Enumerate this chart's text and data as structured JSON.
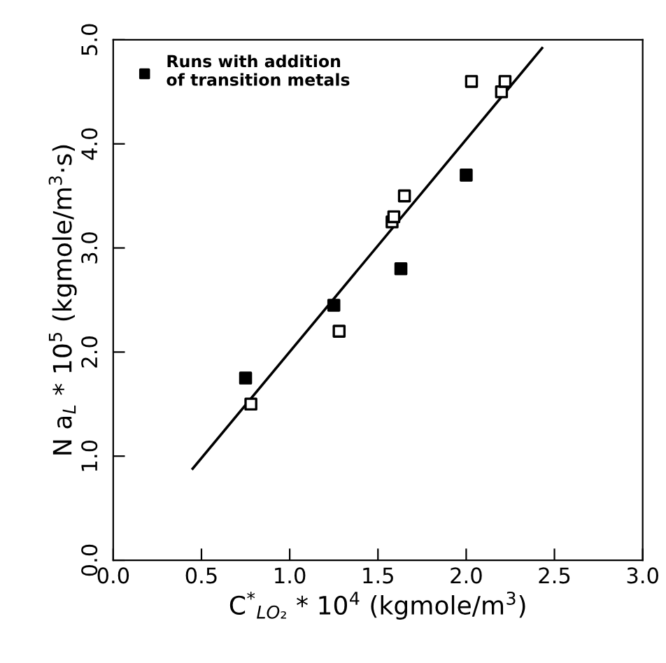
{
  "chart_data": {
    "type": "scatter",
    "xlabel": "C$^{*}$$_{LO₂}$ * 10$^{4}$ (kgmole/m$^{3}$)",
    "ylabel": "N a$_{L}$ * 10$^{5}$ (kgmole/m$^{3}$·s)",
    "xlim": [
      0,
      3.0
    ],
    "xticks": [
      {
        "value": 0,
        "label": "0.0"
      },
      0.5,
      {
        "value": 1,
        "label": "1.0"
      },
      1.5,
      {
        "value": 2,
        "label": "2.0"
      },
      2.5,
      {
        "value": 3,
        "label": "3.0"
      }
    ],
    "ylim": [
      0,
      5.0
    ],
    "yticks": [
      {
        "value": 0,
        "label": "0.0"
      },
      {
        "value": 1,
        "label": "1.0"
      },
      {
        "value": 2,
        "label": "2.0"
      },
      {
        "value": 3,
        "label": "3.0"
      },
      {
        "value": 4,
        "label": "4.0"
      },
      {
        "value": 5,
        "label": "5.0"
      }
    ],
    "grid": false,
    "legend": "top left",
    "series": [
      {
        "name": "Runs with addition\nof transition metals",
        "marker": "square",
        "color": "#000000",
        "x": [
          0.75,
          1.25,
          1.63,
          2.0
        ],
        "values": [
          1.75,
          2.45,
          2.8,
          3.7
        ]
      },
      {
        "marker": "square",
        "color": "#ffffff",
        "x": [
          0.78,
          1.28,
          1.58,
          1.59,
          1.65,
          2.03,
          2.2,
          2.22
        ],
        "values": [
          1.5,
          2.2,
          3.25,
          3.3,
          3.5,
          4.6,
          4.5,
          4.6
        ]
      },
      {
        "type": "line",
        "marker": "none",
        "color": "#000000",
        "x": [
          0.45,
          2.43
        ],
        "values": [
          0.88,
          4.92
        ]
      }
    ]
  }
}
